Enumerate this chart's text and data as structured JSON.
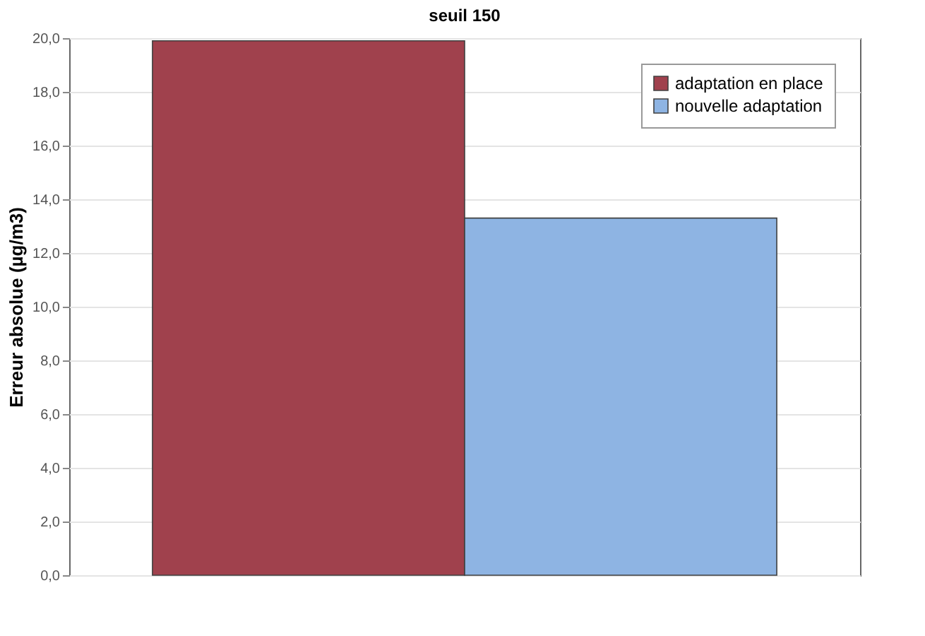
{
  "chart_data": {
    "type": "bar",
    "title": "seuil 150",
    "ylabel": "Erreur absolue (µg/m3)",
    "categories": [
      null
    ],
    "series": [
      {
        "name": "adaptation en place",
        "color": "#a0414d",
        "values": [
          19.9
        ]
      },
      {
        "name": "nouvelle adaptation",
        "color": "#8eb4e3",
        "values": [
          13.3
        ]
      }
    ],
    "ylim": [
      0,
      20
    ],
    "yticks": [
      {
        "value": 0,
        "label": "0,0"
      },
      {
        "value": 2,
        "label": "2,0"
      },
      {
        "value": 4,
        "label": "4,0"
      },
      {
        "value": 6,
        "label": "6,0"
      },
      {
        "value": 8,
        "label": "8,0"
      },
      {
        "value": 10,
        "label": "10,0"
      },
      {
        "value": 12,
        "label": "12,0"
      },
      {
        "value": 14,
        "label": "14,0"
      },
      {
        "value": 16,
        "label": "16,0"
      },
      {
        "value": 18,
        "label": "18,0"
      },
      {
        "value": 20,
        "label": "20,0"
      }
    ],
    "grid": "y",
    "legend": "top right"
  }
}
